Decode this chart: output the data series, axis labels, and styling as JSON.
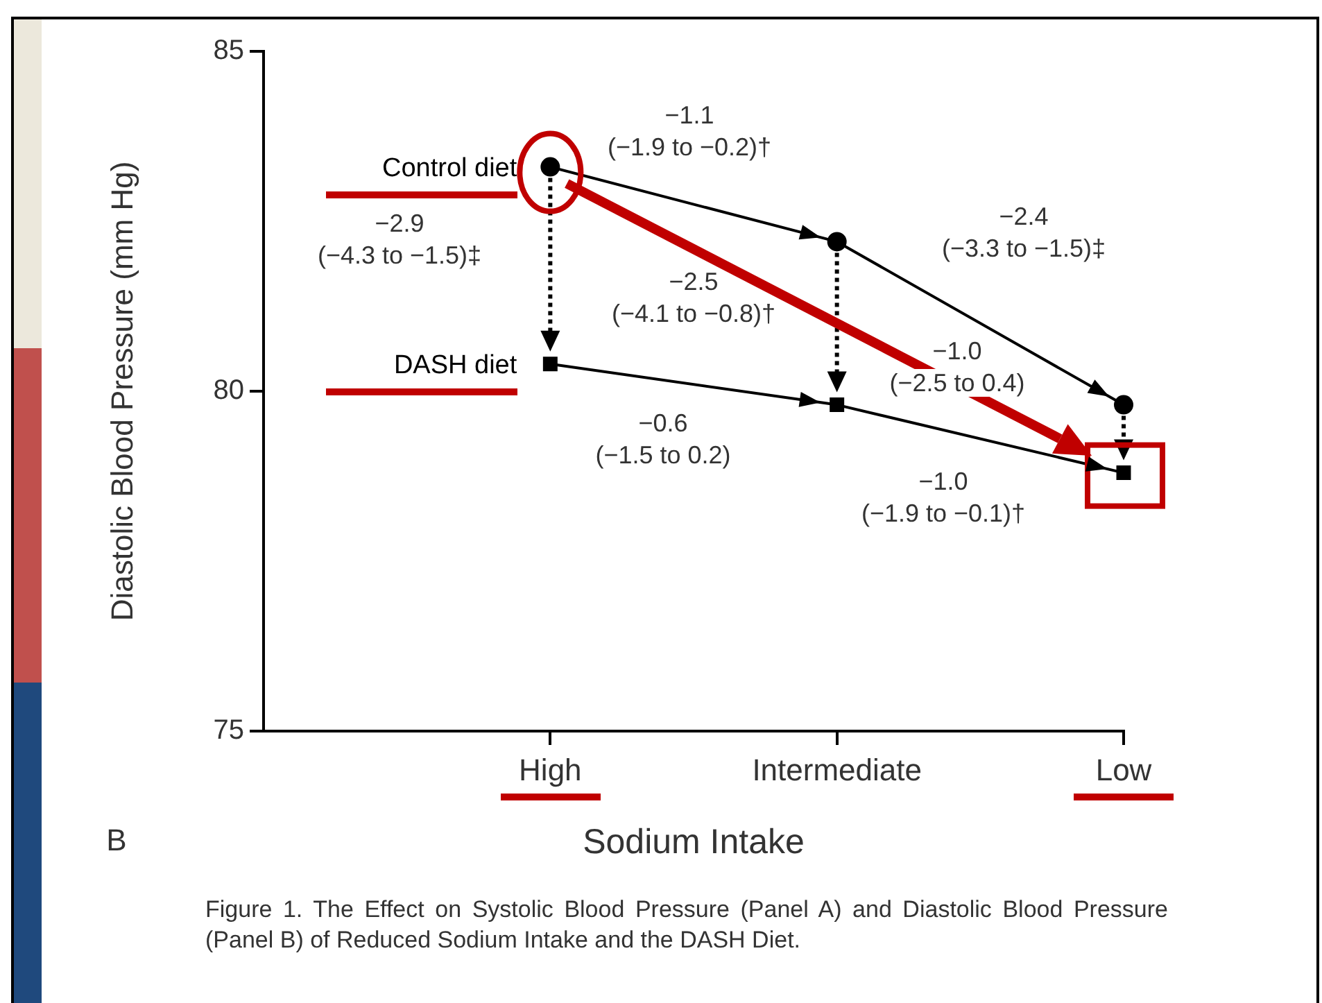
{
  "chart_data": {
    "type": "line",
    "xlabel": "Sodium Intake",
    "ylabel": "Diastolic Blood Pressure (mm Hg)",
    "categories": [
      "High",
      "Intermediate",
      "Low"
    ],
    "series": [
      {
        "name": "Control diet",
        "color": "#000000",
        "marker": "circle",
        "values": [
          83.3,
          82.2,
          79.8
        ]
      },
      {
        "name": "DASH diet",
        "color": "#000000",
        "marker": "square",
        "values": [
          80.4,
          79.8,
          78.8
        ]
      }
    ],
    "ylim": [
      75,
      85
    ],
    "yticks": [
      75,
      80,
      85
    ],
    "grid": false,
    "annotations": [
      "−1.1\n(−1.9 to −0.2)†",
      "−2.9\n(−4.3 to −1.5)‡",
      "−2.5\n(−4.1 to −0.8)†",
      "−2.4\n(−3.3 to −1.5)‡",
      "−1.0\n(−2.5 to 0.4)",
      "−0.6\n(−1.5 to 0.2)",
      "−1.0\n(−1.9 to −0.1)†",
      "B",
      "Figure 1. The Effect on Systolic Blood Pressure (Panel A) and Diastolic Blood Pressure (Panel B) of Reduced Sodium Intake and the DASH Diet."
    ]
  }
}
